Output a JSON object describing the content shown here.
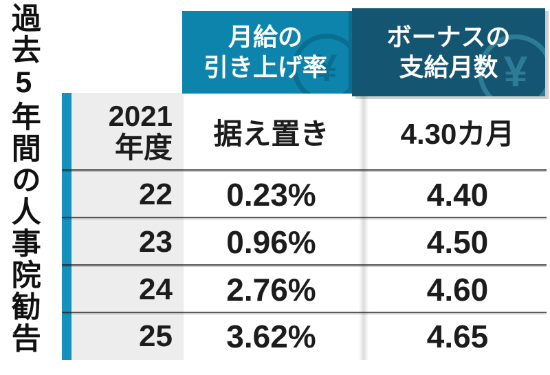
{
  "title": {
    "text": "過去5年間の人事院勧告"
  },
  "header": {
    "col1": {
      "line1": "月給の",
      "line2": "引き上げ率"
    },
    "col2": {
      "line1": "ボーナスの",
      "line2": "支給月数"
    },
    "yen_symbol": "¥"
  },
  "table": {
    "rows": [
      {
        "year_line1": "2021",
        "year_line2": "年度",
        "rate": "据え置き",
        "bonus": "4.30カ月"
      },
      {
        "year_line1": "22",
        "year_line2": "",
        "rate": "0.23%",
        "bonus": "4.40"
      },
      {
        "year_line1": "23",
        "year_line2": "",
        "rate": "0.96%",
        "bonus": "4.50"
      },
      {
        "year_line1": "24",
        "year_line2": "",
        "rate": "2.76%",
        "bonus": "4.60"
      },
      {
        "year_line1": "25",
        "year_line2": "",
        "rate": "3.62%",
        "bonus": "4.65"
      }
    ]
  },
  "colors": {
    "accent_bar": "#1691BC",
    "header1_bg": "#0D84AB",
    "header2_bg": "#145571",
    "header_text": "#FFFFFF",
    "year_cell_bg": "#EDEDED",
    "divider": "#3C3C3C",
    "text": "#1C1C1C",
    "yen_icon_dark": "#0A6E93",
    "yen_icon_light": "#2D7B95"
  },
  "chart_data": {
    "type": "table",
    "title": "過去5年間の人事院勧告",
    "columns": [
      "年度",
      "月給の引き上げ率",
      "ボーナスの支給月数"
    ],
    "rows": [
      [
        "2021年度",
        "据え置き",
        "4.30カ月"
      ],
      [
        "22",
        "0.23%",
        "4.40"
      ],
      [
        "23",
        "0.96%",
        "4.50"
      ],
      [
        "24",
        "2.76%",
        "4.60"
      ],
      [
        "25",
        "3.62%",
        "4.65"
      ]
    ],
    "monthly_raise_pct": [
      null,
      0.23,
      0.96,
      2.76,
      3.62
    ],
    "bonus_months": [
      4.3,
      4.4,
      4.5,
      4.6,
      4.65
    ],
    "layout": {
      "orientation": "header-top",
      "title_position": "left-vertical"
    }
  }
}
